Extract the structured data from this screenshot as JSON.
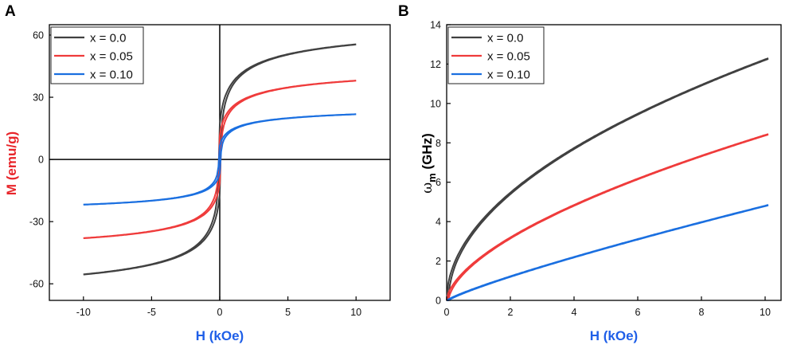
{
  "colors": {
    "black": "#404040",
    "red": "#ef3b3b",
    "blue": "#1a6fe0",
    "xlabel": "#1f5fe8",
    "ylabelA": "#e8262b"
  },
  "chart_data": [
    {
      "panel": "A",
      "type": "line",
      "xlabel": "H (kOe)",
      "ylabel": "M (emu/g)",
      "xlim": [
        -12.5,
        12.5
      ],
      "ylim": [
        -68,
        65
      ],
      "xticks": [
        -10,
        -5,
        0,
        5,
        10
      ],
      "yticks": [
        -60,
        -30,
        0,
        30,
        60
      ],
      "xtick_labels": [
        "-10",
        "-5",
        "0",
        "5",
        "10"
      ],
      "ytick_labels": [
        "-60",
        "-30",
        "0",
        "30",
        "60"
      ],
      "zero_lines": true,
      "legend_position": "top-left",
      "series": [
        {
          "name": "x = 0.0",
          "color_key": "black",
          "Ms": 55.5,
          "h": 0.9,
          "p": 0.5,
          "c": 0.0,
          "hc": 0.08
        },
        {
          "name": "x = 0.05",
          "color_key": "red",
          "Ms": 38.0,
          "h": 0.9,
          "p": 0.5,
          "c": 0.0,
          "hc": 0.08
        },
        {
          "name": "x = 0.10",
          "color_key": "blue",
          "Ms": 21.8,
          "h": 0.9,
          "p": 0.5,
          "c": 0.0,
          "hc": 0.08
        }
      ]
    },
    {
      "panel": "B",
      "type": "line",
      "xlabel": "H (kOe)",
      "ylabel": "ωm (GHz)",
      "ylabel_main": "ω",
      "ylabel_sub": "m",
      "ylabel_unit": " (GHz)",
      "xlim": [
        0,
        10.5
      ],
      "ylim": [
        0,
        14
      ],
      "xticks": [
        0,
        2,
        4,
        6,
        8,
        10
      ],
      "yticks": [
        0,
        2,
        4,
        6,
        8,
        10,
        12,
        14
      ],
      "xtick_labels": [
        "0",
        "2",
        "4",
        "6",
        "8",
        "10"
      ],
      "ytick_labels": [
        "0",
        "2",
        "4",
        "6",
        "8",
        "10",
        "12",
        "14"
      ],
      "legend_position": "top-left",
      "series": [
        {
          "name": "x = 0.0",
          "color_key": "black",
          "Ms": 55.5,
          "h": 0.9,
          "p": 0.5,
          "c": 0.0,
          "hc": 0.08,
          "x_end": 10.1
        },
        {
          "name": "x = 0.05",
          "color_key": "red",
          "Ms": 38.0,
          "h": 0.9,
          "p": 0.5,
          "c": 0.0,
          "hc": 0.08,
          "x_end": 10.1
        },
        {
          "name": "x = 0.10",
          "color_key": "blue",
          "Ms": 21.8,
          "h": 0.9,
          "p": 0.5,
          "c": 0.0,
          "hc": 0.08,
          "x_end": 10.1
        }
      ]
    }
  ]
}
